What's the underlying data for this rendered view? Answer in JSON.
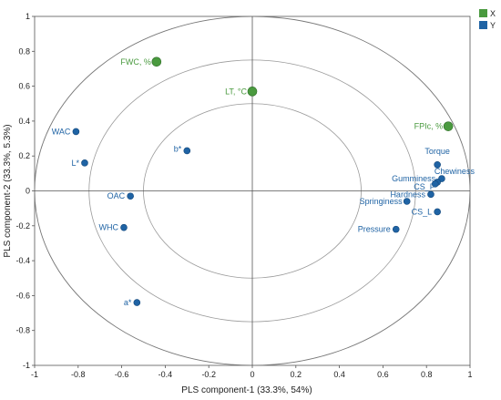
{
  "chart_data": {
    "type": "scatter",
    "xlabel": "PLS component-1 (33.3%, 54%)",
    "ylabel": "PLS component-2 (33.3%, 5.3%)",
    "xlim": [
      -1,
      1
    ],
    "ylim": [
      -1,
      1
    ],
    "x_ticks": [
      "-1",
      "-0.8",
      "-0.6",
      "-0.4",
      "-0.2",
      "0",
      "0.2",
      "0.4",
      "0.6",
      "0.8",
      "1"
    ],
    "y_ticks": [
      "1",
      "0.8",
      "0.6",
      "0.4",
      "0.2",
      "0",
      "-0.2",
      "-0.4",
      "-0.6",
      "-0.8",
      "-1"
    ],
    "circles": [
      1.0,
      0.75,
      0.5
    ],
    "legend_placement": "top-right",
    "series": [
      {
        "name": "X",
        "color": "#4a9a3f",
        "points": [
          {
            "label": "FWC, %",
            "x": -0.44,
            "y": 0.74
          },
          {
            "label": "LT, °C",
            "x": 0.0,
            "y": 0.57
          },
          {
            "label": "FPIc, %",
            "x": 0.9,
            "y": 0.37
          }
        ]
      },
      {
        "name": "Y",
        "color": "#1f63a4",
        "points": [
          {
            "label": "WAC",
            "x": -0.81,
            "y": 0.34
          },
          {
            "label": "L*",
            "x": -0.77,
            "y": 0.16
          },
          {
            "label": "b*",
            "x": -0.3,
            "y": 0.23
          },
          {
            "label": "OAC",
            "x": -0.56,
            "y": -0.03
          },
          {
            "label": "WHC",
            "x": -0.59,
            "y": -0.21
          },
          {
            "label": "a*",
            "x": -0.53,
            "y": -0.64
          },
          {
            "label": "Torque",
            "x": 0.85,
            "y": 0.15
          },
          {
            "label": "Chewiness",
            "x": 0.87,
            "y": 0.07
          },
          {
            "label": "Gumminess",
            "x": 0.85,
            "y": 0.05
          },
          {
            "label": "CS_P",
            "x": 0.84,
            "y": 0.04
          },
          {
            "label": "Hardness",
            "x": 0.82,
            "y": -0.02
          },
          {
            "label": "Springiness",
            "x": 0.71,
            "y": -0.06
          },
          {
            "label": "CS_L",
            "x": 0.85,
            "y": -0.12
          },
          {
            "label": "Pressure",
            "x": 0.66,
            "y": -0.22
          }
        ]
      }
    ]
  }
}
